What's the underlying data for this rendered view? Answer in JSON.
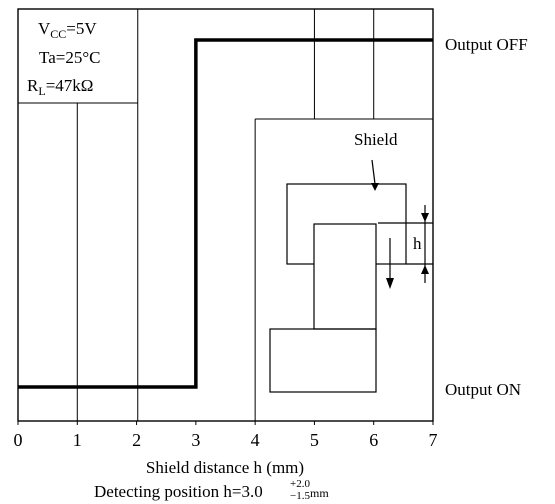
{
  "chart_data": {
    "type": "line",
    "title": "",
    "xlabel": "Shield distance h (mm)",
    "ylabel": "",
    "xlim": [
      0,
      7
    ],
    "xticks": [
      "0",
      "1",
      "2",
      "3",
      "4",
      "5",
      "6",
      "7"
    ],
    "grid": true,
    "conditions": {
      "vcc": {
        "main": "V",
        "sub": "CC",
        "rest": "=5V"
      },
      "ta": "Ta=25°C",
      "rl": {
        "main": "R",
        "sub": "L",
        "rest": "=47kΩ"
      }
    },
    "states": {
      "off": "Output OFF",
      "on": "Output ON"
    },
    "series": [
      {
        "x": [
          0,
          3,
          3,
          7
        ],
        "y": [
          "Output ON",
          "Output ON",
          "Output OFF",
          "Output OFF"
        ]
      }
    ],
    "annotations": {
      "shield_label": "Shield",
      "h_label": "h",
      "detecting": {
        "text": "Detecting position h=3.0",
        "tol_plus": "+2.0",
        "tol_minus": "−1.5",
        "unit": "mm"
      }
    }
  }
}
